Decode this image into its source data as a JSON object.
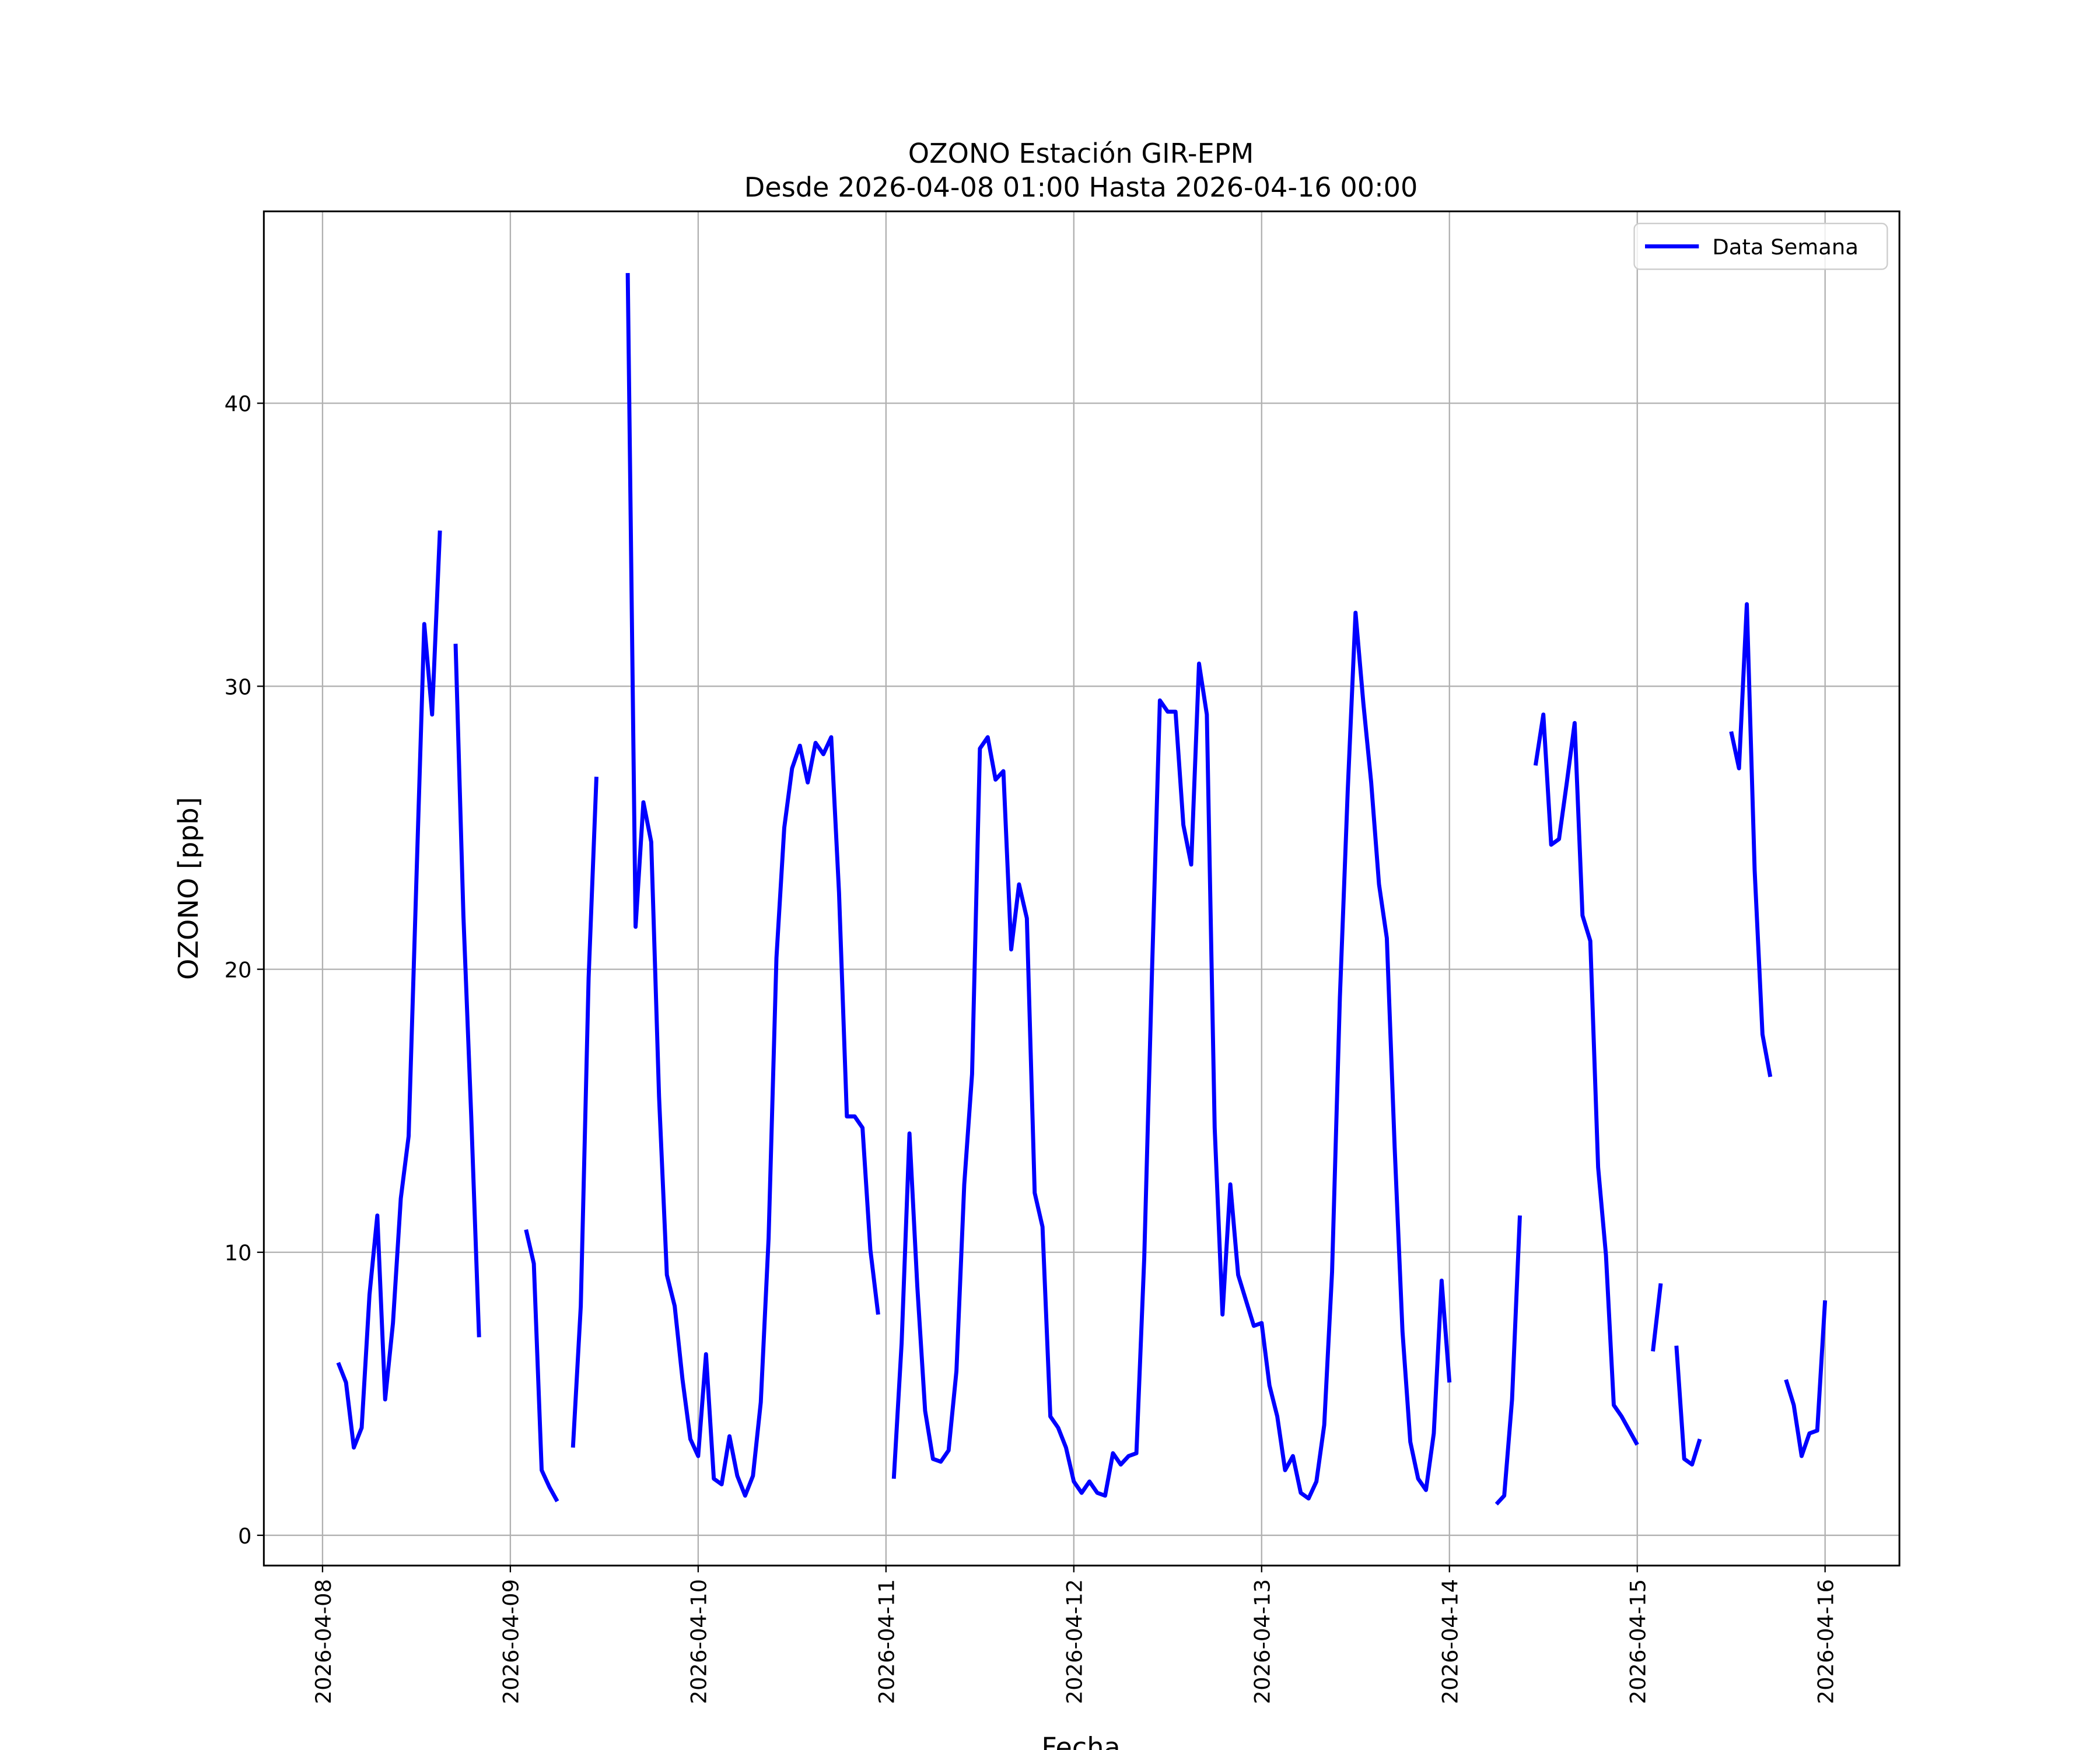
{
  "chart_data": {
    "type": "line",
    "title": "OZONO Estación GIR-EPM",
    "subtitle": "Desde 2026-04-08 01:00 Hasta 2026-04-16 00:00",
    "xlabel": "Fecha",
    "ylabel": "OZONO [ppb]",
    "x": [
      "2026-04-08 01:00",
      "2026-04-08 02:00",
      "2026-04-08 03:00",
      "2026-04-08 04:00",
      "2026-04-08 05:00",
      "2026-04-08 06:00",
      "2026-04-08 07:00",
      "2026-04-08 08:00",
      "2026-04-08 09:00",
      "2026-04-08 10:00",
      "2026-04-08 11:00",
      "2026-04-08 12:00",
      "2026-04-08 13:00",
      "2026-04-08 14:00",
      "2026-04-08 15:00",
      "2026-04-08 16:00",
      "2026-04-08 17:00",
      "2026-04-08 18:00",
      "2026-04-08 19:00",
      "2026-04-08 20:00",
      "2026-04-08 21:00",
      "2026-04-08 22:00",
      "2026-04-08 23:00",
      "2026-04-09 00:00",
      "2026-04-09 01:00",
      "2026-04-09 02:00",
      "2026-04-09 03:00",
      "2026-04-09 04:00",
      "2026-04-09 05:00",
      "2026-04-09 06:00",
      "2026-04-09 07:00",
      "2026-04-09 08:00",
      "2026-04-09 09:00",
      "2026-04-09 10:00",
      "2026-04-09 11:00",
      "2026-04-09 12:00",
      "2026-04-09 13:00",
      "2026-04-09 14:00",
      "2026-04-09 15:00",
      "2026-04-09 16:00",
      "2026-04-09 17:00",
      "2026-04-09 18:00",
      "2026-04-09 19:00",
      "2026-04-09 20:00",
      "2026-04-09 21:00",
      "2026-04-09 22:00",
      "2026-04-09 23:00",
      "2026-04-10 00:00",
      "2026-04-10 01:00",
      "2026-04-10 02:00",
      "2026-04-10 03:00",
      "2026-04-10 04:00",
      "2026-04-10 05:00",
      "2026-04-10 06:00",
      "2026-04-10 07:00",
      "2026-04-10 08:00",
      "2026-04-10 09:00",
      "2026-04-10 10:00",
      "2026-04-10 11:00",
      "2026-04-10 12:00",
      "2026-04-10 13:00",
      "2026-04-10 14:00",
      "2026-04-10 15:00",
      "2026-04-10 16:00",
      "2026-04-10 17:00",
      "2026-04-10 18:00",
      "2026-04-10 19:00",
      "2026-04-10 20:00",
      "2026-04-10 21:00",
      "2026-04-10 22:00",
      "2026-04-10 23:00",
      "2026-04-11 00:00",
      "2026-04-11 01:00",
      "2026-04-11 02:00",
      "2026-04-11 03:00",
      "2026-04-11 04:00",
      "2026-04-11 05:00",
      "2026-04-11 06:00",
      "2026-04-11 07:00",
      "2026-04-11 08:00",
      "2026-04-11 09:00",
      "2026-04-11 10:00",
      "2026-04-11 11:00",
      "2026-04-11 12:00",
      "2026-04-11 13:00",
      "2026-04-11 14:00",
      "2026-04-11 15:00",
      "2026-04-11 16:00",
      "2026-04-11 17:00",
      "2026-04-11 18:00",
      "2026-04-11 19:00",
      "2026-04-11 20:00",
      "2026-04-11 21:00",
      "2026-04-11 22:00",
      "2026-04-11 23:00",
      "2026-04-12 00:00",
      "2026-04-12 01:00",
      "2026-04-12 02:00",
      "2026-04-12 03:00",
      "2026-04-12 04:00",
      "2026-04-12 05:00",
      "2026-04-12 06:00",
      "2026-04-12 07:00",
      "2026-04-12 08:00",
      "2026-04-12 09:00",
      "2026-04-12 10:00",
      "2026-04-12 11:00",
      "2026-04-12 12:00",
      "2026-04-12 13:00",
      "2026-04-12 14:00",
      "2026-04-12 15:00",
      "2026-04-12 16:00",
      "2026-04-12 17:00",
      "2026-04-12 18:00",
      "2026-04-12 19:00",
      "2026-04-12 20:00",
      "2026-04-12 21:00",
      "2026-04-12 22:00",
      "2026-04-12 23:00",
      "2026-04-13 00:00",
      "2026-04-13 01:00",
      "2026-04-13 02:00",
      "2026-04-13 03:00",
      "2026-04-13 04:00",
      "2026-04-13 05:00",
      "2026-04-13 06:00",
      "2026-04-13 07:00",
      "2026-04-13 08:00",
      "2026-04-13 09:00",
      "2026-04-13 10:00",
      "2026-04-13 11:00",
      "2026-04-13 12:00",
      "2026-04-13 13:00",
      "2026-04-13 14:00",
      "2026-04-13 15:00",
      "2026-04-13 16:00",
      "2026-04-13 17:00",
      "2026-04-13 18:00",
      "2026-04-13 19:00",
      "2026-04-13 20:00",
      "2026-04-13 21:00",
      "2026-04-13 22:00",
      "2026-04-13 23:00",
      "2026-04-14 00:00",
      "2026-04-14 01:00",
      "2026-04-14 02:00",
      "2026-04-14 03:00",
      "2026-04-14 04:00",
      "2026-04-14 05:00",
      "2026-04-14 06:00",
      "2026-04-14 07:00",
      "2026-04-14 08:00",
      "2026-04-14 09:00",
      "2026-04-14 10:00",
      "2026-04-14 11:00",
      "2026-04-14 12:00",
      "2026-04-14 13:00",
      "2026-04-14 14:00",
      "2026-04-14 15:00",
      "2026-04-14 16:00",
      "2026-04-14 17:00",
      "2026-04-14 18:00",
      "2026-04-14 19:00",
      "2026-04-14 20:00",
      "2026-04-14 21:00",
      "2026-04-14 22:00",
      "2026-04-14 23:00",
      "2026-04-15 00:00",
      "2026-04-15 01:00",
      "2026-04-15 02:00",
      "2026-04-15 03:00",
      "2026-04-15 04:00",
      "2026-04-15 05:00",
      "2026-04-15 06:00",
      "2026-04-15 07:00",
      "2026-04-15 08:00",
      "2026-04-15 09:00",
      "2026-04-15 10:00",
      "2026-04-15 11:00",
      "2026-04-15 12:00",
      "2026-04-15 13:00",
      "2026-04-15 14:00",
      "2026-04-15 15:00",
      "2026-04-15 16:00",
      "2026-04-15 17:00",
      "2026-04-15 18:00",
      "2026-04-15 19:00",
      "2026-04-15 20:00",
      "2026-04-15 21:00",
      "2026-04-15 22:00",
      "2026-04-15 23:00",
      "2026-04-16 00:00"
    ],
    "series": [
      {
        "name": "Data Semana",
        "color": "#0000ff",
        "values": [
          null,
          6.1,
          5.4,
          3.1,
          3.8,
          8.5,
          11.3,
          4.8,
          7.5,
          11.9,
          14.1,
          23.2,
          32.2,
          29.0,
          35.5,
          null,
          31.5,
          21.9,
          14.8,
          7.0,
          null,
          null,
          null,
          null,
          null,
          10.8,
          9.6,
          2.3,
          1.7,
          1.2,
          null,
          3.1,
          8.1,
          19.7,
          26.8,
          null,
          null,
          null,
          44.6,
          21.5,
          25.9,
          24.5,
          15.5,
          9.2,
          8.1,
          5.5,
          3.4,
          2.8,
          6.4,
          2.0,
          1.8,
          3.5,
          2.1,
          1.4,
          2.1,
          4.7,
          10.5,
          20.4,
          25.0,
          27.1,
          27.9,
          26.6,
          28.0,
          27.6,
          28.2,
          22.7,
          14.8,
          14.8,
          14.4,
          10.1,
          7.8,
          null,
          2.0,
          6.8,
          14.2,
          8.8,
          4.4,
          2.7,
          2.6,
          3.0,
          5.8,
          12.4,
          16.3,
          27.8,
          28.2,
          26.7,
          27.0,
          20.7,
          23.0,
          21.8,
          12.1,
          10.9,
          4.2,
          3.8,
          3.1,
          1.9,
          1.5,
          1.9,
          1.5,
          1.4,
          2.9,
          2.5,
          2.8,
          2.9,
          9.8,
          20.0,
          29.5,
          29.1,
          29.1,
          25.1,
          23.7,
          30.8,
          29.0,
          14.4,
          7.8,
          12.4,
          9.2,
          8.3,
          7.4,
          7.5,
          5.3,
          4.2,
          2.3,
          2.8,
          1.5,
          1.3,
          1.9,
          3.9,
          9.3,
          19.0,
          26.3,
          32.6,
          29.4,
          26.6,
          23.0,
          21.1,
          13.7,
          7.2,
          3.3,
          2.0,
          1.6,
          3.6,
          9.0,
          5.4,
          null,
          null,
          null,
          null,
          null,
          1.1,
          1.4,
          4.8,
          11.3,
          null,
          27.2,
          29.0,
          24.4,
          24.6,
          26.6,
          28.7,
          21.9,
          21.0,
          13.0,
          9.9,
          4.6,
          4.2,
          3.7,
          3.2,
          null,
          6.5,
          8.9,
          null,
          6.7,
          2.7,
          2.5,
          3.4,
          null,
          null,
          null,
          28.4,
          27.1,
          32.9,
          23.5,
          17.7,
          16.2,
          null,
          5.5,
          4.6,
          2.8,
          3.6,
          3.7,
          8.3
        ]
      }
    ],
    "xlim": [
      "2026-04-07 16:30",
      "2026-04-16 09:30"
    ],
    "xticks": [
      {
        "value": "2026-04-08 00:00",
        "label": "2026-04-08"
      },
      {
        "value": "2026-04-09 00:00",
        "label": "2026-04-09"
      },
      {
        "value": "2026-04-10 00:00",
        "label": "2026-04-10"
      },
      {
        "value": "2026-04-11 00:00",
        "label": "2026-04-11"
      },
      {
        "value": "2026-04-12 00:00",
        "label": "2026-04-12"
      },
      {
        "value": "2026-04-13 00:00",
        "label": "2026-04-13"
      },
      {
        "value": "2026-04-14 00:00",
        "label": "2026-04-14"
      },
      {
        "value": "2026-04-15 00:00",
        "label": "2026-04-15"
      },
      {
        "value": "2026-04-16 00:00",
        "label": "2026-04-16"
      }
    ],
    "ylim": [
      -1.07,
      46.78
    ],
    "yticks": [
      0,
      10,
      20,
      30,
      40
    ],
    "grid": true,
    "legend": "upper right"
  }
}
